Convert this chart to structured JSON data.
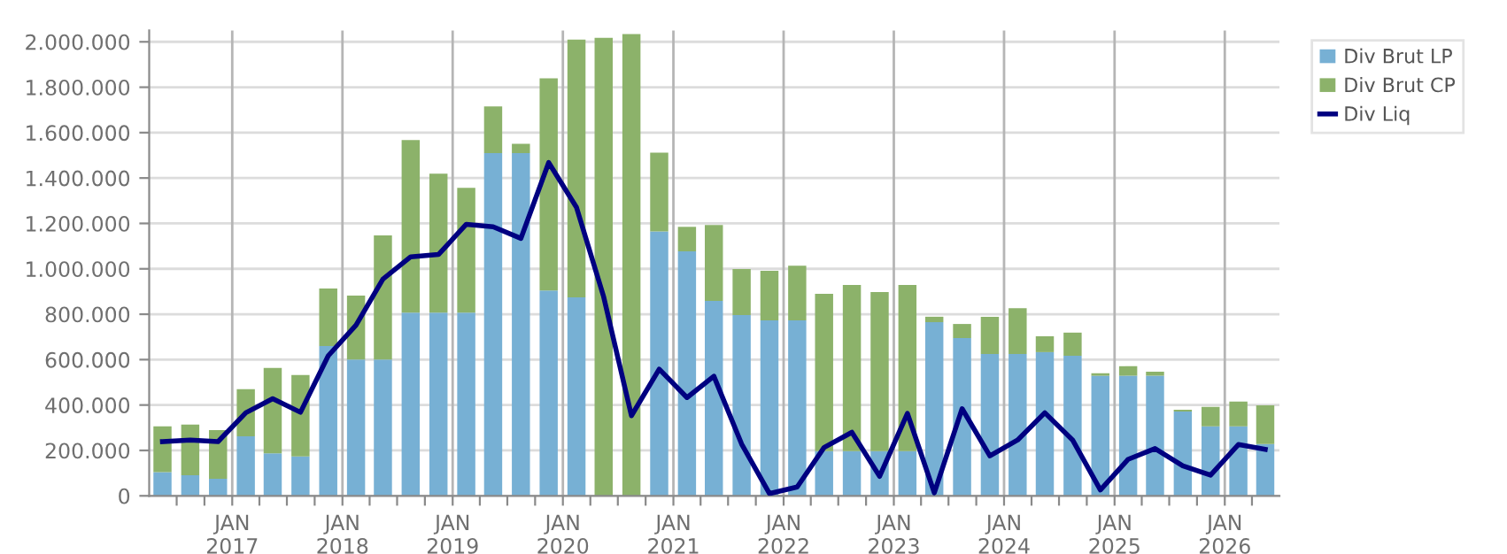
{
  "chart_data": {
    "type": "bar",
    "stacked": true,
    "x": [
      "2016-05-15",
      "2016-08-15",
      "2016-11-15",
      "2017-02-15",
      "2017-05-15",
      "2017-08-15",
      "2017-11-15",
      "2018-02-15",
      "2018-05-15",
      "2018-08-15",
      "2018-11-15",
      "2019-02-15",
      "2019-05-15",
      "2019-08-15",
      "2019-11-15",
      "2020-02-15",
      "2020-05-15",
      "2020-08-15",
      "2020-11-15",
      "2021-02-15",
      "2021-05-15",
      "2021-08-15",
      "2021-11-15",
      "2022-02-15",
      "2022-05-15",
      "2022-08-15",
      "2022-11-15",
      "2023-02-15",
      "2023-05-15",
      "2023-08-15",
      "2023-11-15",
      "2024-02-15",
      "2024-05-15",
      "2024-08-15",
      "2024-11-15",
      "2025-02-15",
      "2025-05-15",
      "2025-08-15",
      "2025-11-15",
      "2026-02-15",
      "2026-05-15"
    ],
    "series": [
      {
        "name": "Div Brut LP",
        "color": "#77b0d4",
        "values": [
          104000,
          91000,
          75000,
          262000,
          187000,
          174000,
          660000,
          600000,
          600000,
          807000,
          807000,
          807000,
          1510000,
          1510000,
          905000,
          874000,
          0,
          0,
          1165000,
          1077000,
          859000,
          796000,
          773000,
          773000,
          197000,
          197000,
          197000,
          197000,
          765000,
          695000,
          625000,
          625000,
          633000,
          617000,
          529000,
          529000,
          529000,
          371000,
          306000,
          306000,
          228000
        ]
      },
      {
        "name": "Div Brut CP",
        "color": "#8cb26a",
        "values": [
          202000,
          223000,
          215000,
          208000,
          376000,
          358000,
          253000,
          282000,
          547000,
          760000,
          612000,
          550000,
          205000,
          41000,
          934000,
          1136000,
          2018000,
          2034000,
          347000,
          108000,
          334000,
          203000,
          218000,
          241000,
          693000,
          732000,
          701000,
          732000,
          24000,
          62000,
          164000,
          202000,
          70000,
          102000,
          11000,
          42000,
          18000,
          8000,
          86000,
          109000,
          171000
        ]
      },
      {
        "name": "Div Liq",
        "type": "line",
        "color": "#000080",
        "values": [
          239000,
          246000,
          239000,
          366000,
          428000,
          368000,
          617000,
          752000,
          955000,
          1053000,
          1063000,
          1196000,
          1185000,
          1134000,
          1468000,
          1271000,
          877000,
          353000,
          558000,
          433000,
          527000,
          228000,
          10000,
          39000,
          213000,
          280000,
          86000,
          363000,
          13000,
          384000,
          176000,
          246000,
          366000,
          246000,
          26000,
          161000,
          208000,
          132000,
          91000,
          226000,
          205000
        ]
      }
    ],
    "xlim": [
      "2016-04-01",
      "2026-07-01"
    ],
    "xticks": [
      {
        "value": "2016-07-01",
        "label": null
      },
      {
        "value": "2016-10-01",
        "label": null
      },
      {
        "value": "2017-01-01",
        "label": "JAN\n2017"
      },
      {
        "value": "2017-04-01",
        "label": null
      },
      {
        "value": "2017-07-01",
        "label": null
      },
      {
        "value": "2017-10-01",
        "label": null
      },
      {
        "value": "2018-01-01",
        "label": "JAN\n2018"
      },
      {
        "value": "2018-04-01",
        "label": null
      },
      {
        "value": "2018-07-01",
        "label": null
      },
      {
        "value": "2018-10-01",
        "label": null
      },
      {
        "value": "2019-01-01",
        "label": "JAN\n2019"
      },
      {
        "value": "2019-04-01",
        "label": null
      },
      {
        "value": "2019-07-01",
        "label": null
      },
      {
        "value": "2019-10-01",
        "label": null
      },
      {
        "value": "2020-01-01",
        "label": "JAN\n2020"
      },
      {
        "value": "2020-04-01",
        "label": null
      },
      {
        "value": "2020-07-01",
        "label": null
      },
      {
        "value": "2020-10-01",
        "label": null
      },
      {
        "value": "2021-01-01",
        "label": "JAN\n2021"
      },
      {
        "value": "2021-04-01",
        "label": null
      },
      {
        "value": "2021-07-01",
        "label": null
      },
      {
        "value": "2021-10-01",
        "label": null
      },
      {
        "value": "2022-01-01",
        "label": "JAN\n2022"
      },
      {
        "value": "2022-04-01",
        "label": null
      },
      {
        "value": "2022-07-01",
        "label": null
      },
      {
        "value": "2022-10-01",
        "label": null
      },
      {
        "value": "2023-01-01",
        "label": "JAN\n2023"
      },
      {
        "value": "2023-04-01",
        "label": null
      },
      {
        "value": "2023-07-01",
        "label": null
      },
      {
        "value": "2023-10-01",
        "label": null
      },
      {
        "value": "2024-01-01",
        "label": "JAN\n2024"
      },
      {
        "value": "2024-04-01",
        "label": null
      },
      {
        "value": "2024-07-01",
        "label": null
      },
      {
        "value": "2024-10-01",
        "label": null
      },
      {
        "value": "2025-01-01",
        "label": "JAN\n2025"
      },
      {
        "value": "2025-04-01",
        "label": null
      },
      {
        "value": "2025-07-01",
        "label": null
      },
      {
        "value": "2025-10-01",
        "label": null
      },
      {
        "value": "2026-01-01",
        "label": "JAN\n2026"
      },
      {
        "value": "2026-04-01",
        "label": null
      }
    ],
    "ylim": [
      0,
      2050000
    ],
    "yticks": [
      {
        "value": 0,
        "label": "0"
      },
      {
        "value": 200000,
        "label": "200.000"
      },
      {
        "value": 400000,
        "label": "400.000"
      },
      {
        "value": 600000,
        "label": "600.000"
      },
      {
        "value": 800000,
        "label": "800.000"
      },
      {
        "value": 1000000,
        "label": "1.000.000"
      },
      {
        "value": 1200000,
        "label": "1.200.000"
      },
      {
        "value": 1400000,
        "label": "1.400.000"
      },
      {
        "value": 1600000,
        "label": "1.600.000"
      },
      {
        "value": 1800000,
        "label": "1.800.000"
      },
      {
        "value": 2000000,
        "label": "2.000.000"
      }
    ],
    "grid": true,
    "legend": "top right",
    "line_style": "solid"
  }
}
